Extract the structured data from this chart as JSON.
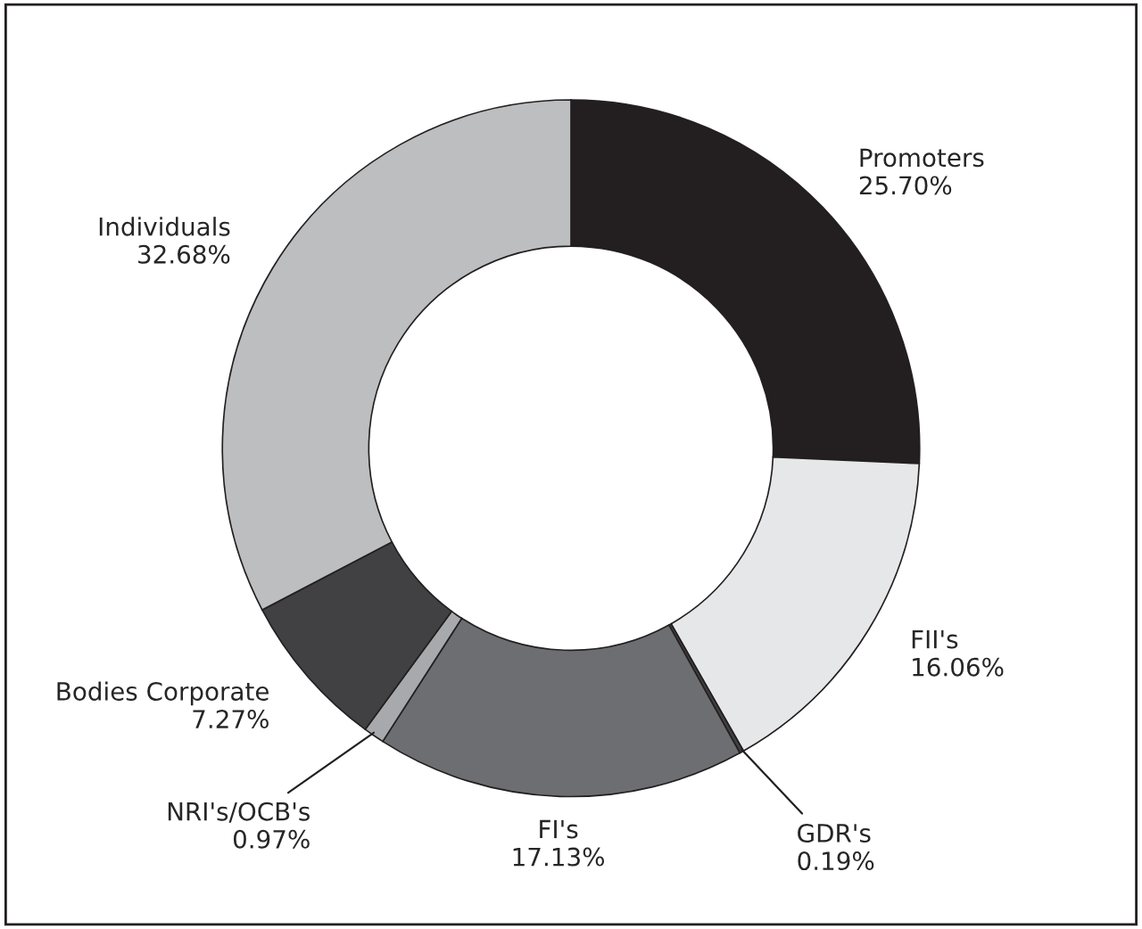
{
  "chart_data": {
    "type": "donut",
    "categories": [
      "Promoters",
      "FII's",
      "GDR's",
      "FI's",
      "NRI's/OCB's",
      "Bodies Corporate",
      "Individuals"
    ],
    "values": [
      25.7,
      16.06,
      0.19,
      17.13,
      0.97,
      7.27,
      32.68
    ],
    "colors": [
      "#231f20",
      "#e6e7e8",
      "#404040",
      "#6d6e71",
      "#a7a9ac",
      "#414042",
      "#bcbec0"
    ],
    "value_labels": [
      "25.70%",
      "16.06%",
      "0.19%",
      "17.13%",
      "0.97%",
      "7.27%",
      "32.68%"
    ],
    "legend": false
  }
}
